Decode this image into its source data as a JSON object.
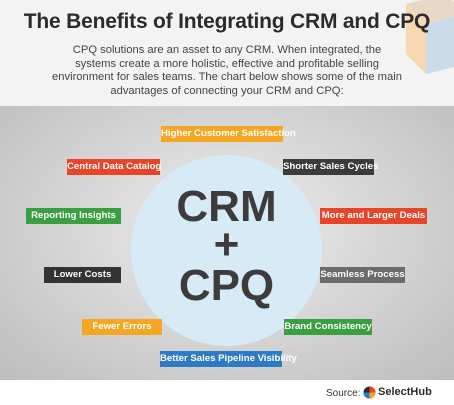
{
  "header": {
    "title": "The Benefits of Integrating CRM and CPQ",
    "subtitle": "CPQ solutions are an asset to any CRM. When integrated, the systems create a more holistic, effective and profitable selling environment for sales teams. The chart below shows some of the main advantages of connecting your CRM and CPQ:"
  },
  "center": {
    "line1": "CRM",
    "line2": "+",
    "line3": "CPQ"
  },
  "benefits": [
    {
      "label": "Higher Customer Satisfaction",
      "color": "#f5a623"
    },
    {
      "label": "Central Data Catalog",
      "color": "#e8442a"
    },
    {
      "label": "Shorter Sales Cycles",
      "color": "#3b3b3b"
    },
    {
      "label": "Reporting Insights",
      "color": "#3a9f40"
    },
    {
      "label": "More and Larger Deals",
      "color": "#e8442a"
    },
    {
      "label": "Lower Costs",
      "color": "#333333"
    },
    {
      "label": "Seamless Process",
      "color": "#6b6b6b"
    },
    {
      "label": "Fewer Errors",
      "color": "#f5a623"
    },
    {
      "label": "Brand Consistency",
      "color": "#3a9f40"
    },
    {
      "label": "Better Sales Pipeline Visibility",
      "color": "#2e7bc4"
    }
  ],
  "footer": {
    "source_label": "Source:",
    "brand": "SelectHub"
  }
}
